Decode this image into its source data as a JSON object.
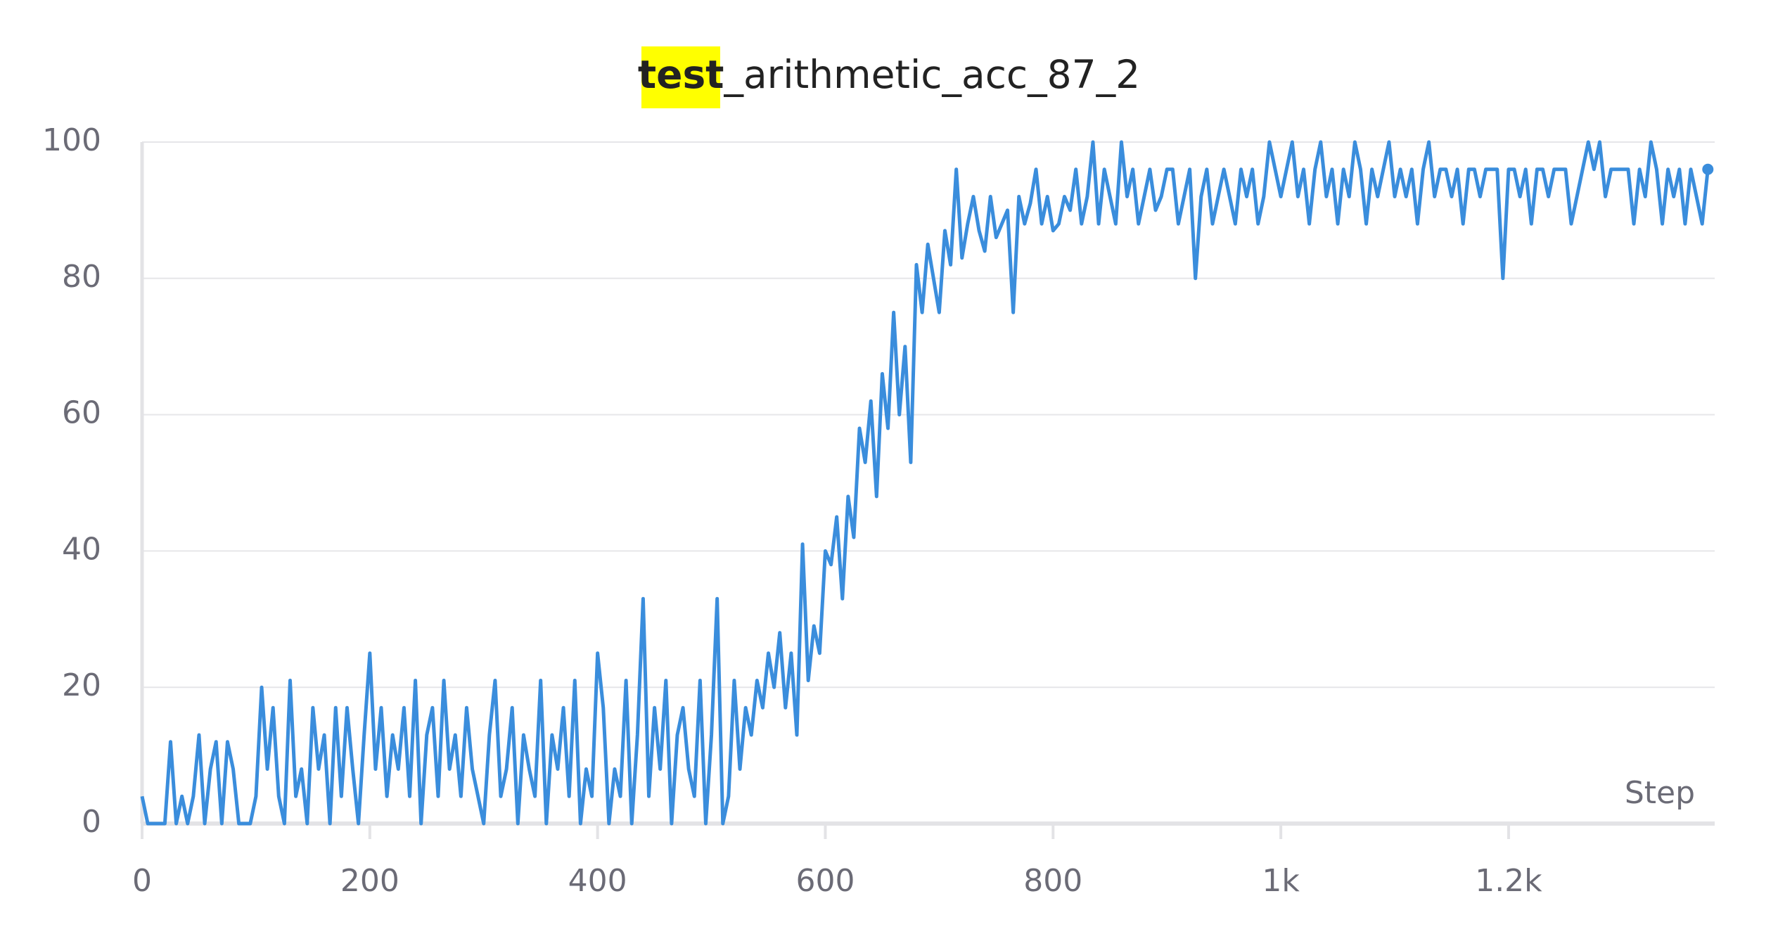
{
  "chart_data": {
    "type": "line",
    "title": {
      "highlight": "test",
      "rest": "_arithmetic_acc_87_2"
    },
    "x_label": "Step",
    "x": [
      0,
      5,
      10,
      15,
      20,
      25,
      30,
      35,
      40,
      45,
      50,
      55,
      60,
      65,
      70,
      75,
      80,
      85,
      90,
      95,
      100,
      105,
      110,
      115,
      120,
      125,
      130,
      135,
      140,
      145,
      150,
      155,
      160,
      165,
      170,
      175,
      180,
      185,
      190,
      195,
      200,
      205,
      210,
      215,
      220,
      225,
      230,
      235,
      240,
      245,
      250,
      255,
      260,
      265,
      270,
      275,
      280,
      285,
      290,
      295,
      300,
      305,
      310,
      315,
      320,
      325,
      330,
      335,
      340,
      345,
      350,
      355,
      360,
      365,
      370,
      375,
      380,
      385,
      390,
      395,
      400,
      405,
      410,
      415,
      420,
      425,
      430,
      435,
      440,
      445,
      450,
      455,
      460,
      465,
      470,
      475,
      480,
      485,
      490,
      495,
      500,
      505,
      510,
      515,
      520,
      525,
      530,
      535,
      540,
      545,
      550,
      555,
      560,
      565,
      570,
      575,
      580,
      585,
      590,
      595,
      600,
      605,
      610,
      615,
      620,
      625,
      630,
      635,
      640,
      645,
      650,
      655,
      660,
      665,
      670,
      675,
      680,
      685,
      690,
      695,
      700,
      705,
      710,
      715,
      720,
      725,
      730,
      735,
      740,
      745,
      750,
      755,
      760,
      765,
      770,
      775,
      780,
      785,
      790,
      795,
      800,
      805,
      810,
      815,
      820,
      825,
      830,
      835,
      840,
      845,
      850,
      855,
      860,
      865,
      870,
      875,
      880,
      885,
      890,
      895,
      900,
      905,
      910,
      915,
      920,
      925,
      930,
      935,
      940,
      945,
      950,
      955,
      960,
      965,
      970,
      975,
      980,
      985,
      990,
      995,
      1000,
      1005,
      1010,
      1015,
      1020,
      1025,
      1030,
      1035,
      1040,
      1045,
      1050,
      1055,
      1060,
      1065,
      1070,
      1075,
      1080,
      1085,
      1090,
      1095,
      1100,
      1105,
      1110,
      1115,
      1120,
      1125,
      1130,
      1135,
      1140,
      1145,
      1150,
      1155,
      1160,
      1165,
      1170,
      1175,
      1180,
      1185,
      1190,
      1195,
      1200,
      1205,
      1210,
      1215,
      1220,
      1225,
      1230,
      1235,
      1240,
      1245,
      1250,
      1255,
      1260,
      1265,
      1270,
      1275,
      1280,
      1285,
      1290,
      1295,
      1300,
      1305,
      1310,
      1315,
      1320,
      1325,
      1330,
      1335,
      1340,
      1345,
      1350,
      1355,
      1360,
      1365,
      1370,
      1375
    ],
    "series": [
      {
        "name": "test_arithmetic_acc_87_2",
        "color": "#3a8ddc",
        "values": [
          4,
          0,
          0,
          0,
          0,
          12,
          0,
          4,
          0,
          4,
          13,
          0,
          8,
          12,
          0,
          12,
          8,
          0,
          0,
          0,
          4,
          20,
          8,
          17,
          4,
          0,
          21,
          4,
          8,
          0,
          17,
          8,
          13,
          0,
          17,
          4,
          17,
          8,
          0,
          13,
          25,
          8,
          17,
          4,
          13,
          8,
          17,
          4,
          21,
          0,
          13,
          17,
          4,
          21,
          8,
          13,
          4,
          17,
          8,
          4,
          0,
          13,
          21,
          4,
          8,
          17,
          0,
          13,
          8,
          4,
          21,
          0,
          13,
          8,
          17,
          4,
          21,
          0,
          8,
          4,
          25,
          17,
          0,
          8,
          4,
          21,
          0,
          13,
          33,
          4,
          17,
          8,
          21,
          0,
          13,
          17,
          8,
          4,
          21,
          0,
          13,
          33,
          0,
          4,
          21,
          8,
          17,
          13,
          21,
          17,
          25,
          20,
          28,
          17,
          25,
          13,
          41,
          21,
          29,
          25,
          40,
          38,
          45,
          33,
          48,
          42,
          58,
          53,
          62,
          48,
          66,
          58,
          75,
          60,
          70,
          53,
          82,
          75,
          85,
          80,
          75,
          87,
          82,
          96,
          83,
          88,
          92,
          87,
          84,
          92,
          86,
          88,
          90,
          75,
          92,
          88,
          91,
          96,
          88,
          92,
          87,
          88,
          92,
          90,
          96,
          88,
          92,
          100,
          88,
          96,
          92,
          88,
          100,
          92,
          96,
          88,
          92,
          96,
          90,
          92,
          96,
          96,
          88,
          92,
          96,
          80,
          92,
          96,
          88,
          92,
          96,
          92,
          88,
          96,
          92,
          96,
          88,
          92,
          100,
          96,
          92,
          96,
          100,
          92,
          96,
          88,
          96,
          100,
          92,
          96,
          88,
          96,
          92,
          100,
          96,
          88,
          96,
          92,
          96,
          100,
          92,
          96,
          92,
          96,
          88,
          96,
          100,
          92,
          96,
          96,
          92,
          96,
          88,
          96,
          96,
          92,
          96,
          96,
          96,
          80,
          96,
          96,
          92,
          96,
          88,
          96,
          96,
          92,
          96,
          96,
          96,
          88,
          92,
          96,
          100,
          96,
          100,
          92,
          96,
          96,
          96,
          96,
          88,
          96,
          92,
          100,
          96,
          88,
          96,
          92,
          96,
          88,
          96,
          92,
          88,
          96
        ]
      }
    ],
    "xlim": [
      0,
      1381
    ],
    "ylim": [
      0,
      100
    ],
    "xticks": [
      0,
      200,
      400,
      600,
      800,
      {
        "value": 1000,
        "label": "1k"
      },
      {
        "value": 1200,
        "label": "1.2k"
      }
    ],
    "yticks": [
      0,
      20,
      40,
      60,
      80,
      100
    ],
    "grid": true
  }
}
